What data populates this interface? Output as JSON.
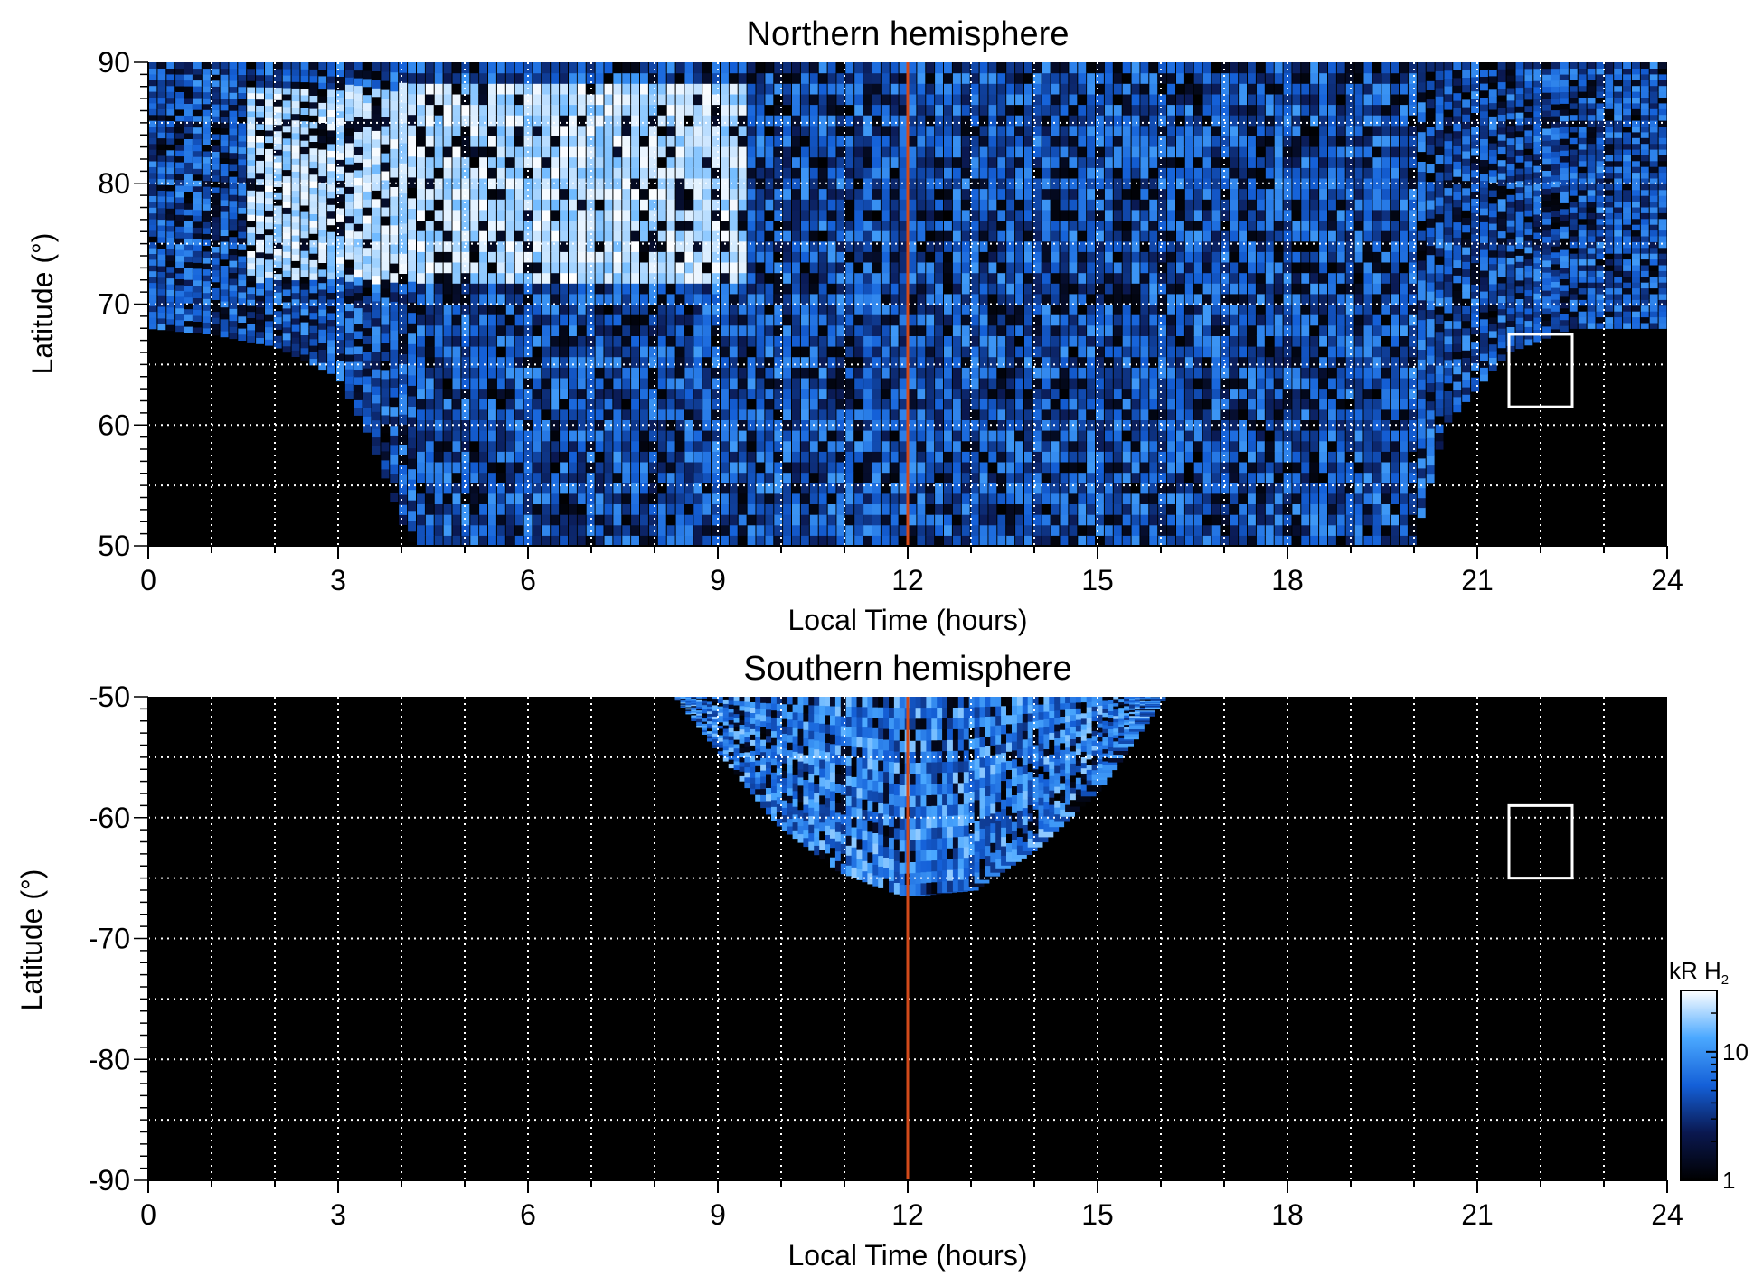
{
  "chart_data": [
    {
      "type": "heatmap",
      "title": "Northern hemisphere",
      "xlabel": "Local Time (hours)",
      "ylabel": "Latitude (°)",
      "xlim": [
        0,
        24
      ],
      "ylim": [
        50,
        90
      ],
      "x_ticks": [
        0,
        3,
        6,
        9,
        12,
        15,
        18,
        21,
        24
      ],
      "y_ticks": [
        50,
        60,
        70,
        80,
        90
      ],
      "x_tick_labels": [
        "0",
        "3",
        "6",
        "9",
        "12",
        "15",
        "18",
        "21",
        "24"
      ],
      "y_tick_labels": [
        "50",
        "60",
        "70",
        "80",
        "90"
      ],
      "grid": true,
      "x_grid_step": 1,
      "y_grid_step": 5,
      "coverage": {
        "description_lat_lower_edge_by_lt": [
          [
            0,
            68
          ],
          [
            1,
            67.5
          ],
          [
            2,
            66.5
          ],
          [
            3,
            64
          ],
          [
            3.5,
            59
          ],
          [
            4,
            52
          ],
          [
            4.2,
            50
          ],
          [
            20,
            50
          ],
          [
            20.5,
            60
          ],
          [
            21.5,
            66
          ],
          [
            22.5,
            68
          ],
          [
            24,
            68
          ]
        ],
        "bright_region": {
          "lt": [
            1.5,
            9.5
          ],
          "lat": [
            72,
            88
          ]
        }
      },
      "noon_line_lt": 12,
      "noon_line_color": "#d24a1a",
      "marker_box": {
        "lt": [
          21.5,
          22.5
        ],
        "lat": [
          61.5,
          67.5
        ],
        "color": "#ffffff"
      }
    },
    {
      "type": "heatmap",
      "title": "Southern hemisphere",
      "xlabel": "Local Time (hours)",
      "ylabel": "Latitude (°)",
      "xlim": [
        0,
        24
      ],
      "ylim": [
        -90,
        -50
      ],
      "x_ticks": [
        0,
        3,
        6,
        9,
        12,
        15,
        18,
        21,
        24
      ],
      "y_ticks": [
        -90,
        -80,
        -70,
        -60,
        -50
      ],
      "x_tick_labels": [
        "0",
        "3",
        "6",
        "9",
        "12",
        "15",
        "18",
        "21",
        "24"
      ],
      "y_tick_labels": [
        "-90",
        "-80",
        "-70",
        "-60",
        "-50"
      ],
      "grid": true,
      "x_grid_step": 1,
      "y_grid_step": 5,
      "coverage": {
        "description_lat_lower_edge_by_lt": [
          [
            8.4,
            -50
          ],
          [
            9,
            -54
          ],
          [
            10,
            -60.5
          ],
          [
            11,
            -64.5
          ],
          [
            12,
            -66.5
          ],
          [
            13,
            -66
          ],
          [
            14,
            -62.5
          ],
          [
            15,
            -57.5
          ],
          [
            16,
            -50
          ]
        ]
      },
      "noon_line_lt": 12,
      "noon_line_color": "#d24a1a",
      "marker_box": {
        "lt": [
          21.5,
          22.5
        ],
        "lat": [
          -65,
          -59
        ],
        "color": "#ffffff"
      }
    }
  ],
  "colorbar": {
    "label": "kR H",
    "label_subscript": "2",
    "scale": "log",
    "range": [
      1,
      30
    ],
    "ticks": [
      1,
      10
    ],
    "tick_labels": [
      "1",
      "10"
    ],
    "colors": [
      "#000000",
      "#0a1850",
      "#1460d8",
      "#4aa8ff",
      "#ffffff"
    ]
  }
}
